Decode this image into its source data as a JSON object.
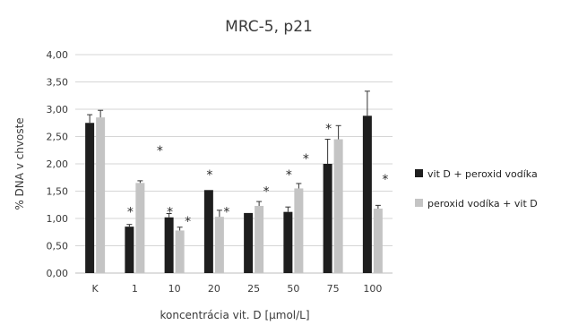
{
  "chart_data": {
    "type": "bar",
    "title": "MRC-5, p21",
    "xlabel": "koncentrácia vit. D [μmol/L]",
    "ylabel": "% DNA v chvoste",
    "ylim": [
      0,
      4
    ],
    "yticks": [
      "0,00",
      "0,50",
      "1,00",
      "1,50",
      "2,00",
      "2,50",
      "3,00",
      "3,50",
      "4,00"
    ],
    "categories": [
      "K",
      "1",
      "10",
      "20",
      "25",
      "50",
      "75",
      "100"
    ],
    "grid": true,
    "legend_position": "right",
    "series": [
      {
        "name": "vit D + peroxid vodíka",
        "color": "#1e1e1e",
        "values": [
          2.75,
          0.85,
          1.02,
          1.52,
          1.1,
          1.12,
          2.0,
          2.88
        ],
        "errors": [
          0.15,
          0.04,
          0.07,
          0.0,
          0.0,
          0.09,
          0.45,
          0.45
        ],
        "significance": [
          "",
          "*",
          "*",
          "*",
          "",
          "*",
          "*",
          ""
        ]
      },
      {
        "name": "peroxid vodíka + vit D",
        "color": "#c4c4c4",
        "values": [
          2.85,
          1.65,
          0.78,
          1.03,
          1.23,
          1.55,
          2.45,
          1.18
        ],
        "errors": [
          0.13,
          0.04,
          0.06,
          0.12,
          0.08,
          0.09,
          0.25,
          0.06
        ],
        "significance": [
          "",
          "*",
          "*",
          "*",
          "*",
          "*",
          "",
          "*"
        ]
      }
    ]
  }
}
